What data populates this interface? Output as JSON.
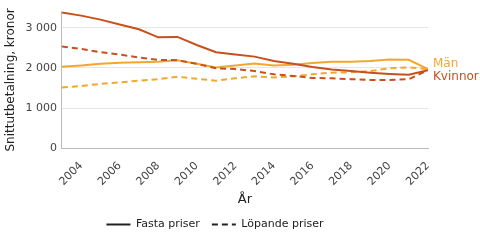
{
  "chart_data": {
    "type": "line",
    "x_label": "År",
    "y_label": "Snittutbetalning, kronor",
    "x": [
      2003,
      2004,
      2005,
      2006,
      2007,
      2008,
      2009,
      2010,
      2011,
      2012,
      2013,
      2014,
      2015,
      2016,
      2017,
      2018,
      2019,
      2020,
      2021,
      2022
    ],
    "xlim": [
      2003,
      2022
    ],
    "xticks": [
      2004,
      2006,
      2008,
      2010,
      2012,
      2014,
      2016,
      2018,
      2020,
      2022
    ],
    "ylim": [
      0,
      3400
    ],
    "yticks": [
      0,
      {
        "value": 1000,
        "label": "1 000"
      },
      {
        "value": 2000,
        "label": "2 000"
      },
      {
        "value": 3000,
        "label": "3 000"
      }
    ],
    "grid": true,
    "legend": "bottom",
    "series": [
      {
        "name": "Kvinnor",
        "price": "Fasta priser",
        "line_style": "solid",
        "color": "#c8501e",
        "values": [
          3380,
          3300,
          3200,
          3080,
          2960,
          2760,
          2770,
          2570,
          2390,
          2330,
          2280,
          2170,
          2100,
          2020,
          1960,
          1920,
          1880,
          1850,
          1830,
          1940
        ]
      },
      {
        "name": "Kvinnor",
        "price": "Löpande priser",
        "line_style": "dashed",
        "color": "#c8501e",
        "values": [
          2530,
          2470,
          2390,
          2330,
          2260,
          2200,
          2190,
          2100,
          1990,
          1970,
          1920,
          1840,
          1800,
          1750,
          1740,
          1720,
          1700,
          1700,
          1720,
          1940
        ]
      },
      {
        "name": "Män",
        "price": "Fasta priser",
        "line_style": "solid",
        "color": "#f2a72e",
        "values": [
          2030,
          2060,
          2100,
          2130,
          2140,
          2150,
          2190,
          2100,
          2010,
          2060,
          2110,
          2060,
          2080,
          2120,
          2150,
          2150,
          2170,
          2210,
          2200,
          1970
        ]
      },
      {
        "name": "Män",
        "price": "Löpande priser",
        "line_style": "dashed",
        "color": "#f2a72e",
        "values": [
          1510,
          1550,
          1600,
          1640,
          1680,
          1720,
          1780,
          1730,
          1680,
          1740,
          1790,
          1760,
          1790,
          1840,
          1880,
          1890,
          1920,
          1990,
          2010,
          1970
        ]
      }
    ]
  }
}
